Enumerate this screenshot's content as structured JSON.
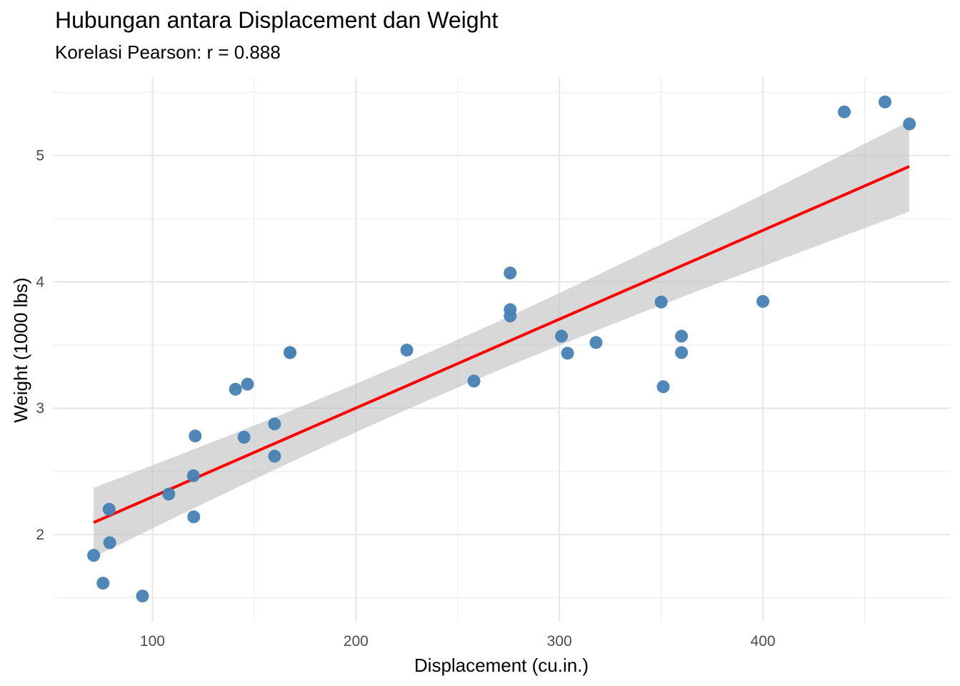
{
  "chart_data": {
    "type": "scatter",
    "title": "Hubungan antara Displacement dan Weight",
    "subtitle": "Korelasi Pearson: r = 0.888",
    "xlabel": "Displacement (cu.in.)",
    "ylabel": "Weight (1000 lbs)",
    "xlim": [
      51.05,
      491.95
    ],
    "ylim": [
      1.31,
      5.62
    ],
    "x_ticks": [
      100,
      200,
      300,
      400
    ],
    "y_ticks": [
      2,
      3,
      4,
      5
    ],
    "grid": true,
    "legend": "none",
    "point_color": "#4682B4",
    "regression_color": "#FF0000",
    "band_color": "#BEBEBE",
    "points": [
      {
        "x": 160.0,
        "y": 2.62
      },
      {
        "x": 160.0,
        "y": 2.875
      },
      {
        "x": 108.0,
        "y": 2.32
      },
      {
        "x": 258.0,
        "y": 3.215
      },
      {
        "x": 360.0,
        "y": 3.44
      },
      {
        "x": 225.0,
        "y": 3.46
      },
      {
        "x": 360.0,
        "y": 3.57
      },
      {
        "x": 146.7,
        "y": 3.19
      },
      {
        "x": 140.8,
        "y": 3.15
      },
      {
        "x": 167.6,
        "y": 3.44
      },
      {
        "x": 167.6,
        "y": 3.44
      },
      {
        "x": 275.8,
        "y": 4.07
      },
      {
        "x": 275.8,
        "y": 3.73
      },
      {
        "x": 275.8,
        "y": 3.78
      },
      {
        "x": 472.0,
        "y": 5.25
      },
      {
        "x": 460.0,
        "y": 5.424
      },
      {
        "x": 440.0,
        "y": 5.345
      },
      {
        "x": 78.7,
        "y": 2.2
      },
      {
        "x": 75.7,
        "y": 1.615
      },
      {
        "x": 71.1,
        "y": 1.835
      },
      {
        "x": 120.1,
        "y": 2.465
      },
      {
        "x": 318.0,
        "y": 3.52
      },
      {
        "x": 304.0,
        "y": 3.435
      },
      {
        "x": 350.0,
        "y": 3.84
      },
      {
        "x": 400.0,
        "y": 3.845
      },
      {
        "x": 79.0,
        "y": 1.935
      },
      {
        "x": 120.3,
        "y": 2.14
      },
      {
        "x": 95.1,
        "y": 1.513
      },
      {
        "x": 351.0,
        "y": 3.17
      },
      {
        "x": 145.0,
        "y": 2.77
      },
      {
        "x": 301.0,
        "y": 3.57
      },
      {
        "x": 121.0,
        "y": 2.78
      }
    ],
    "regression": {
      "x": [
        71.1,
        471.9
      ],
      "y": [
        2.095,
        4.913
      ],
      "ci_lower": [
        1.83,
        4.56
      ],
      "ci_upper": [
        2.37,
        5.27
      ]
    }
  }
}
